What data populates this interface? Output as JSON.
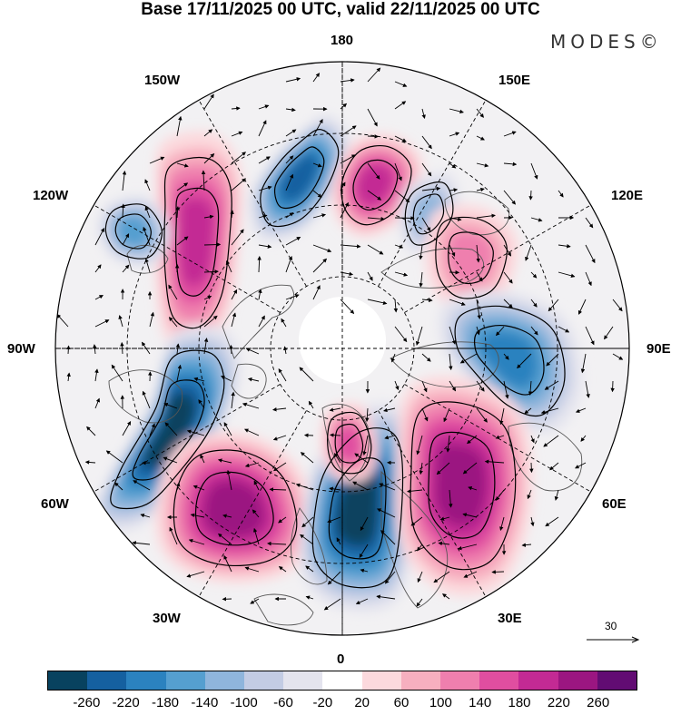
{
  "title": "Base 17/11/2025 00 UTC, valid 22/11/2025 00 UTC",
  "logo": "MODES©",
  "longitude_labels": {
    "top": "180",
    "bottom": "0",
    "left": "90W",
    "right": "90E",
    "upper_left_1": "150W",
    "upper_left_2": "120W",
    "upper_right_1": "150E",
    "upper_right_2": "120E",
    "lower_left_1": "60W",
    "lower_left_2": "30W",
    "lower_right_1": "60E",
    "lower_right_2": "30E"
  },
  "vector_scale": {
    "label": "30"
  },
  "colorbar": {
    "colors": [
      "#08425f",
      "#1560a0",
      "#2b82bf",
      "#559fd0",
      "#8fb5dc",
      "#c3cce4",
      "#e4e4ee",
      "#ffffff",
      "#fcd9dd",
      "#f7afbf",
      "#ef7fae",
      "#e04ea0",
      "#c32a94",
      "#9b1681",
      "#620c73"
    ],
    "tick_labels": [
      "-260",
      "-220",
      "-180",
      "-140",
      "-100",
      "-60",
      "-20",
      "20",
      "60",
      "100",
      "140",
      "180",
      "220",
      "260"
    ]
  },
  "anomalies": [
    {
      "name": "low-pacific-north",
      "value": -220
    },
    {
      "name": "high-bering",
      "value": 200
    },
    {
      "name": "low-eastern-siberia",
      "value": -120
    },
    {
      "name": "high-west-canada",
      "value": 180
    },
    {
      "name": "low-gulf-alaska",
      "value": -160
    },
    {
      "name": "high-siberia",
      "value": 110
    },
    {
      "name": "low-central-asia",
      "value": -180
    },
    {
      "name": "low-hudson-labrador",
      "value": -260
    },
    {
      "name": "high-north-atlantic",
      "value": 220
    },
    {
      "name": "low-europe",
      "value": -260
    },
    {
      "name": "high-eastern-europe",
      "value": 220
    },
    {
      "name": "high-greenland",
      "value": 140
    }
  ]
}
